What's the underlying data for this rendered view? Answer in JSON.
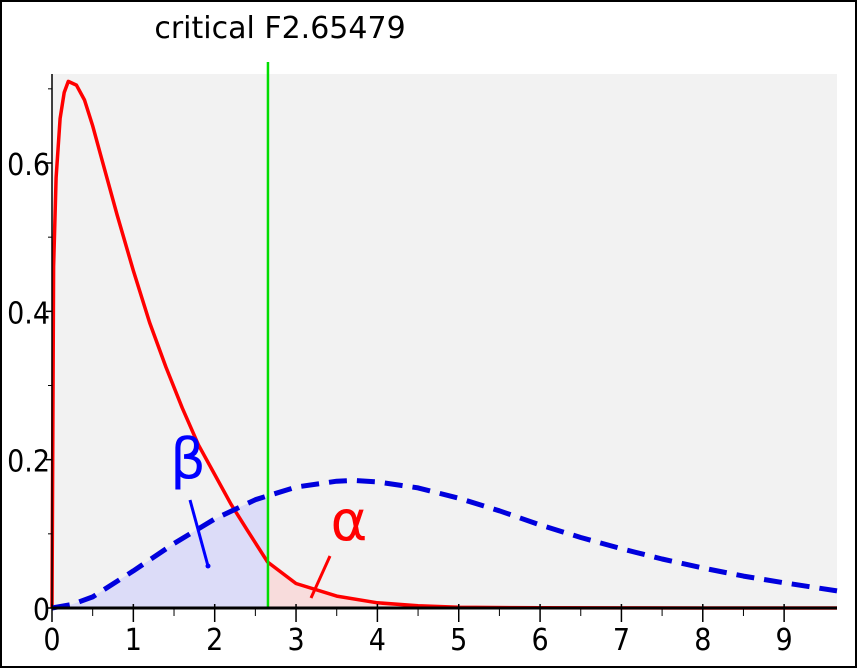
{
  "chart_data": {
    "type": "line",
    "title": "critical F2.65479",
    "xlabel": "",
    "ylabel": "",
    "xlim": [
      0,
      9.65
    ],
    "ylim": [
      0,
      0.72
    ],
    "x_ticks": [
      "0",
      "1",
      "2",
      "3",
      "4",
      "5",
      "6",
      "7",
      "8",
      "9"
    ],
    "y_ticks": [
      "0",
      "0.2",
      "0.4",
      "0.6"
    ],
    "critical_value": 2.65479,
    "grid": false,
    "series": [
      {
        "style": "solid",
        "color": "#ff0000",
        "x": [
          0,
          0.02,
          0.05,
          0.1,
          0.15,
          0.2,
          0.3,
          0.4,
          0.5,
          0.6,
          0.8,
          1.0,
          1.2,
          1.4,
          1.6,
          1.8,
          2.0,
          2.2,
          2.4,
          2.65,
          3.0,
          3.5,
          4.0,
          4.5,
          5.0,
          6.0,
          7.0,
          8.0,
          9.0,
          9.65
        ],
        "y": [
          0,
          0.46,
          0.58,
          0.66,
          0.695,
          0.71,
          0.705,
          0.685,
          0.65,
          0.61,
          0.53,
          0.455,
          0.385,
          0.325,
          0.27,
          0.22,
          0.18,
          0.14,
          0.105,
          0.062,
          0.033,
          0.016,
          0.007,
          0.003,
          0.001,
          0.0003,
          0.0001,
          0,
          0,
          0
        ]
      },
      {
        "style": "dashed",
        "color": "#0000dd",
        "x": [
          0,
          0.25,
          0.5,
          1.0,
          1.5,
          2.0,
          2.5,
          3.0,
          3.5,
          3.7,
          4.0,
          4.5,
          5.0,
          5.5,
          6.0,
          6.5,
          7.0,
          7.5,
          8.0,
          8.5,
          9.0,
          9.65
        ],
        "y": [
          0,
          0.005,
          0.015,
          0.05,
          0.087,
          0.12,
          0.146,
          0.163,
          0.171,
          0.172,
          0.17,
          0.162,
          0.148,
          0.131,
          0.112,
          0.095,
          0.08,
          0.066,
          0.054,
          0.043,
          0.034,
          0.023
        ]
      }
    ],
    "annotations": [
      {
        "text": "β",
        "color": "#0000ff",
        "region": "below dashed curve, left of critical value"
      },
      {
        "text": "α",
        "color": "#ff0000",
        "region": "below solid curve, right of critical value"
      }
    ],
    "colors": {
      "plot_bg": "#f2f2f2",
      "beta_fill": "#dcdcf8",
      "alpha_fill": "#f8dcdc",
      "critical_line": "#00dd00",
      "axis": "#000000"
    }
  }
}
